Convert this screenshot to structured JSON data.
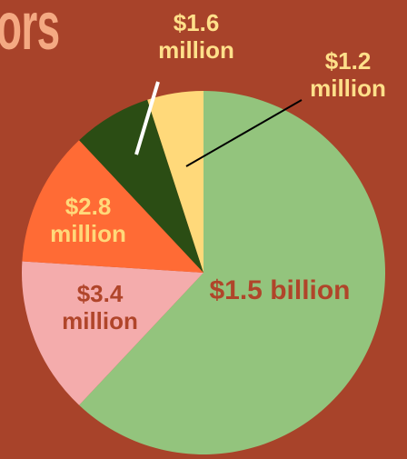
{
  "chart_data": {
    "type": "pie",
    "title": "ors",
    "categories": [
      "$1.5 billion",
      "$3.4 million",
      "$2.8 million",
      "$1.6 million",
      "$1.2 million"
    ],
    "values": [
      62,
      14,
      12,
      7,
      5
    ],
    "colors": [
      "#93c47d",
      "#f4acac",
      "#ff6b35",
      "#2b4d14",
      "#ffd97a"
    ]
  }
}
